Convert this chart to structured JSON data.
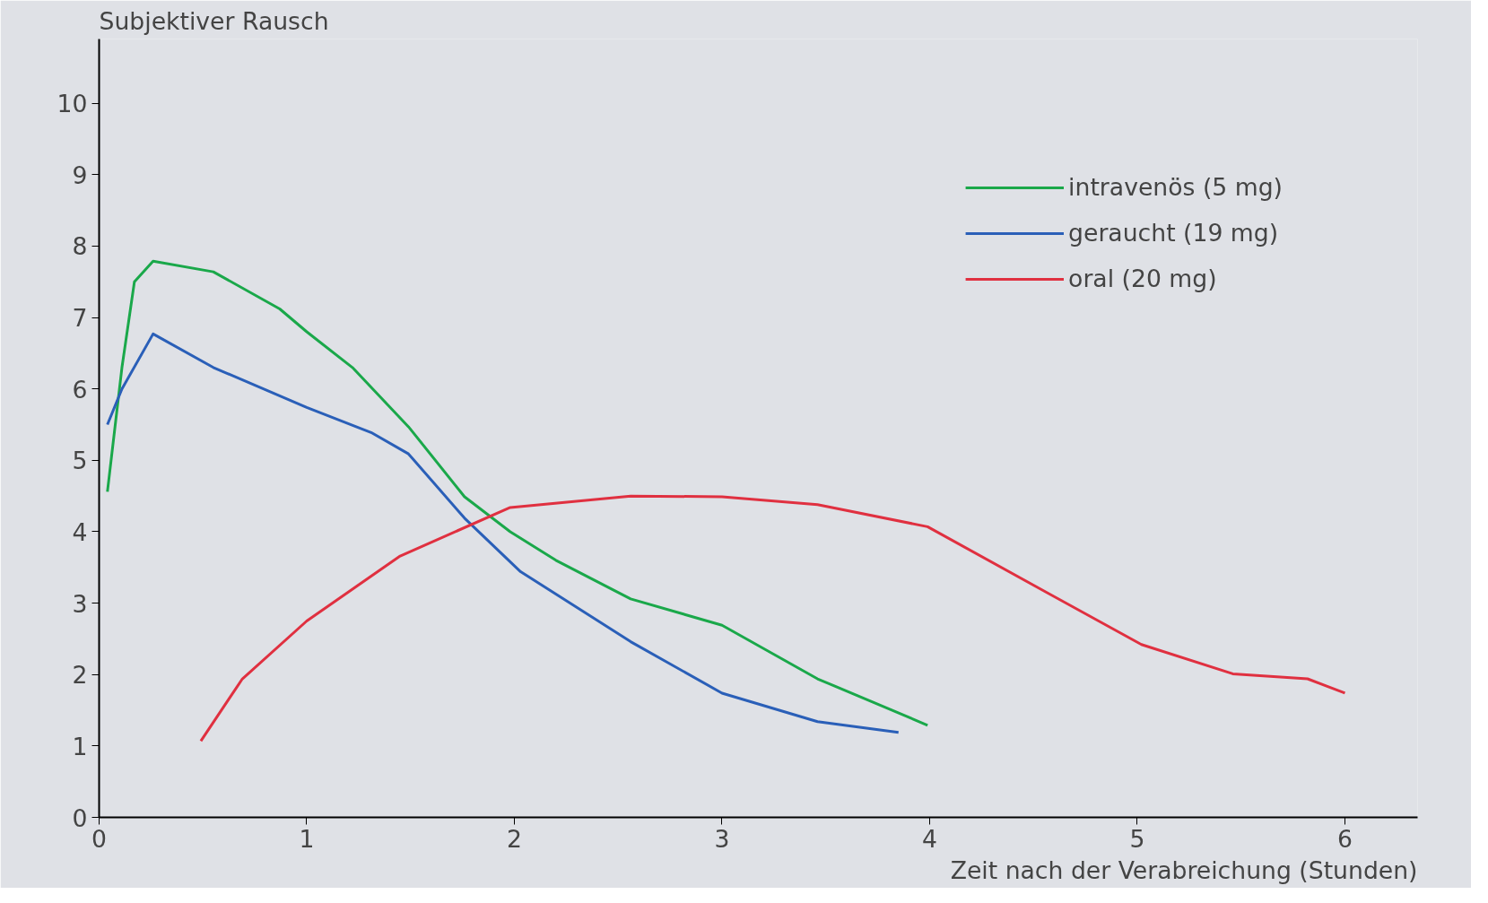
{
  "chart_data": {
    "type": "line",
    "xlabel": "Zeit nach der Verabreichung (Stunden)",
    "ylabel": "Subjektiver Rausch",
    "xlim": [
      0,
      6.35
    ],
    "ylim": [
      0,
      10.9
    ],
    "xticks": [
      0,
      1,
      2,
      3,
      4,
      5,
      6
    ],
    "yticks": [
      0,
      1,
      2,
      3,
      4,
      5,
      6,
      7,
      8,
      9,
      10
    ],
    "grid": false,
    "legend": "top right",
    "marker": "none",
    "line_style": "solid",
    "series": [
      {
        "name": "intravenös (5 mg)",
        "color": "#1aa84a",
        "x": [
          0.04,
          0.11,
          0.17,
          0.26,
          0.55,
          0.87,
          1.0,
          1.22,
          1.49,
          1.76,
          1.98,
          2.2,
          2.56,
          3.0,
          3.46,
          3.99
        ],
        "values": [
          4.56,
          6.3,
          7.5,
          7.79,
          7.64,
          7.12,
          6.8,
          6.3,
          5.47,
          4.49,
          4.0,
          3.6,
          3.06,
          2.69,
          1.94,
          1.29
        ]
      },
      {
        "name": "geraucht (19 mg)",
        "color": "#2a5fb8",
        "x": [
          0.04,
          0.11,
          0.26,
          0.55,
          1.0,
          1.31,
          1.49,
          1.76,
          2.03,
          2.56,
          3.0,
          3.46,
          3.85
        ],
        "values": [
          5.5,
          6.0,
          6.77,
          6.3,
          5.74,
          5.39,
          5.09,
          4.19,
          3.44,
          2.46,
          1.74,
          1.34,
          1.19
        ]
      },
      {
        "name": "oral (20 mg)",
        "color": "#e03040",
        "x": [
          0.49,
          0.69,
          1.0,
          1.45,
          1.98,
          2.56,
          3.0,
          3.46,
          3.99,
          4.57,
          5.02,
          5.46,
          5.82,
          6.0
        ],
        "values": [
          1.07,
          1.94,
          2.75,
          3.66,
          4.34,
          4.5,
          4.49,
          4.38,
          4.07,
          3.14,
          2.42,
          2.01,
          1.94,
          1.74
        ]
      }
    ]
  }
}
